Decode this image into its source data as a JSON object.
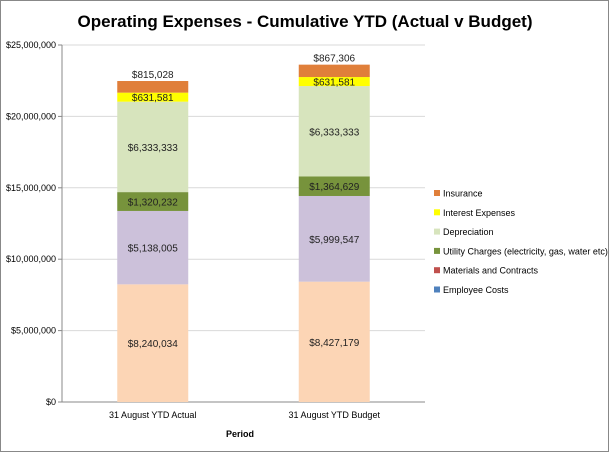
{
  "chart_data": {
    "type": "bar",
    "stacked": true,
    "title": "Operating Expenses - Cumulative YTD (Actual v Budget)",
    "xlabel": "Period",
    "ylabel": "",
    "ylim": [
      0,
      25000000
    ],
    "yticks": [
      "$0",
      "$5,000,000",
      "$10,000,000",
      "$15,000,000",
      "$20,000,000",
      "$25,000,000"
    ],
    "grid": true,
    "legend_placement": "right",
    "categories": [
      "31 August YTD Actual",
      "31 August YTD Budget"
    ],
    "series": [
      {
        "name": "Employee Costs",
        "values": [
          8240034,
          8427179
        ],
        "labels": [
          "$8,240,034",
          "$8,427,179"
        ],
        "bar_color": "#FCD5B5",
        "legend_color": "#4F81BD"
      },
      {
        "name": "Materials and Contracts",
        "values": [
          5138005,
          5999547
        ],
        "labels": [
          "$5,138,005",
          "$5,999,547"
        ],
        "bar_color": "#CCC1DA",
        "legend_color": "#C0504D"
      },
      {
        "name": "Utility Charges (electricity, gas, water etc)",
        "values": [
          1320232,
          1364629
        ],
        "labels": [
          "$1,320,232",
          "$1,364,629"
        ],
        "bar_color": "#77933C",
        "legend_color": "#77933C"
      },
      {
        "name": "Depreciation",
        "values": [
          6333333,
          6333333
        ],
        "labels": [
          "$6,333,333",
          "$6,333,333"
        ],
        "bar_color": "#D7E4BD",
        "legend_color": "#D7E4BD"
      },
      {
        "name": "Interest Expenses",
        "values": [
          631581,
          631581
        ],
        "labels": [
          "$631,581",
          "$631,581"
        ],
        "bar_color": "#FFFF00",
        "legend_color": "#FFFF00"
      },
      {
        "name": "Insurance",
        "values": [
          815028,
          867306
        ],
        "labels": [
          "$815,028",
          "$867,306"
        ],
        "bar_color": "#E07F3A",
        "legend_color": "#E07F3A"
      }
    ]
  }
}
